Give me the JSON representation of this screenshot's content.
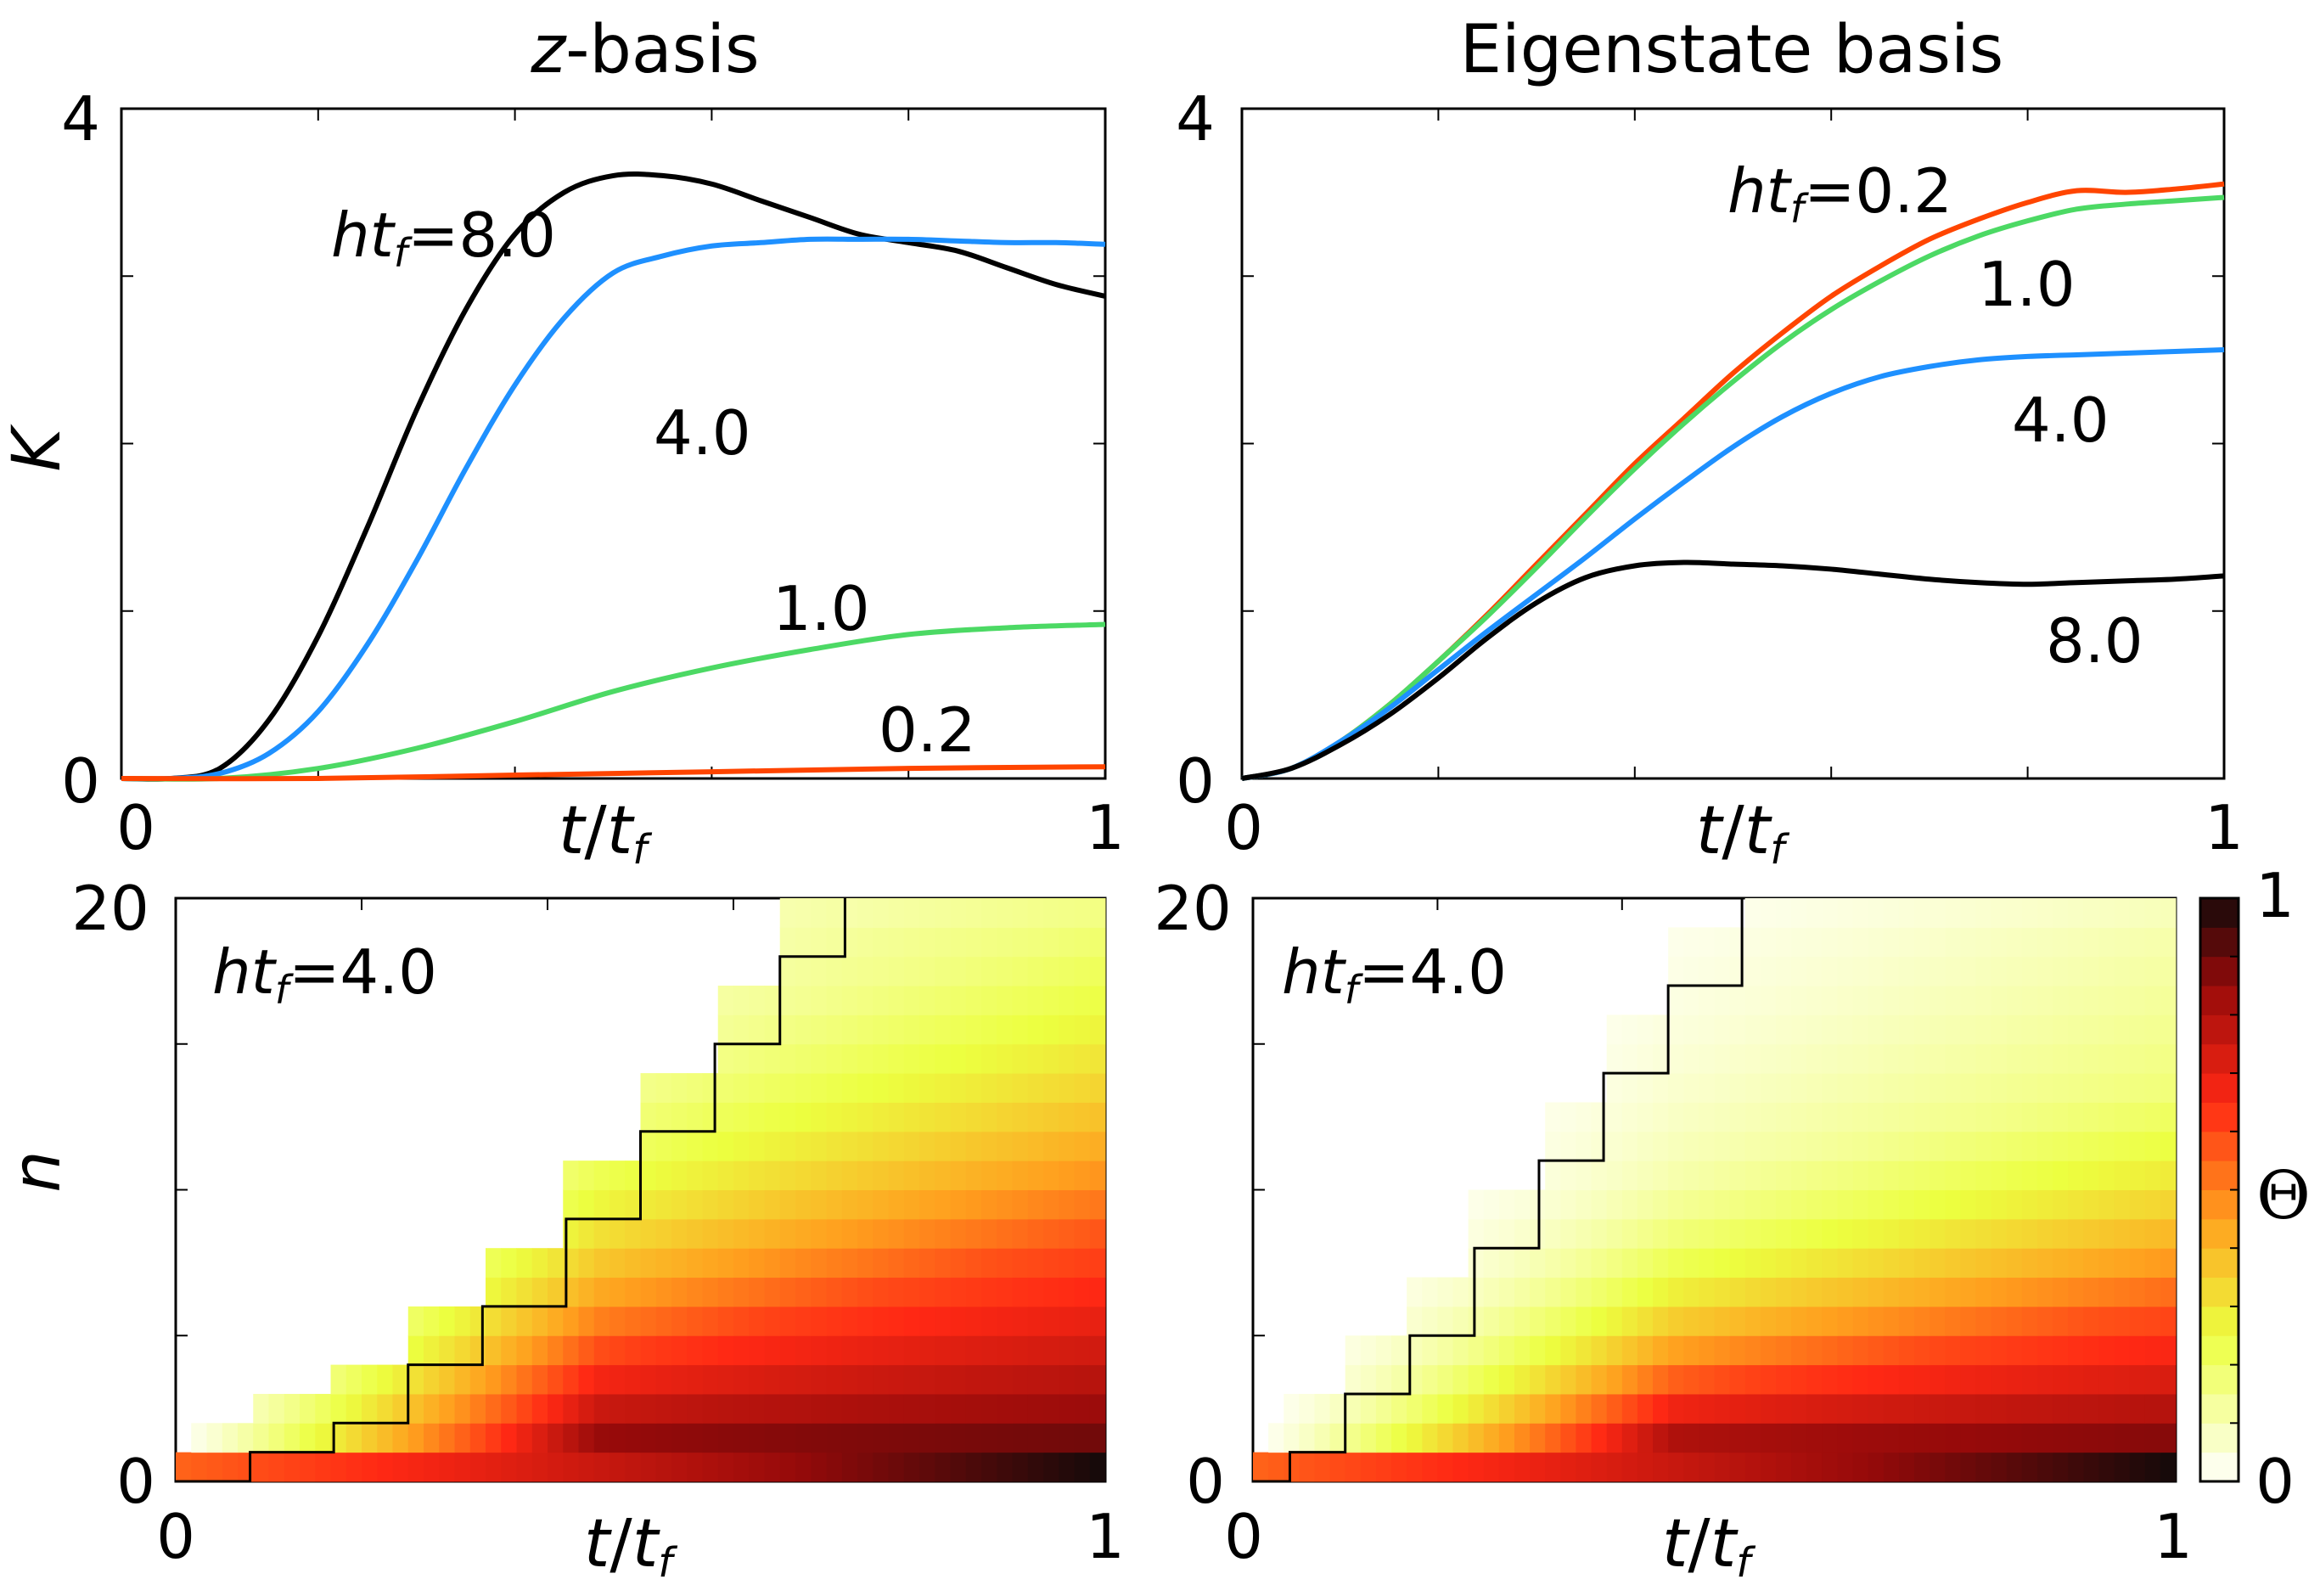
{
  "chart_data": [
    {
      "type": "line",
      "panel": "top-left",
      "title": "z-basis",
      "xlabel": "t/t_f",
      "ylabel": "K",
      "xlim": [
        0,
        1
      ],
      "ylim": [
        0,
        4
      ],
      "xticks": [
        "0",
        "1"
      ],
      "yticks": [
        "0",
        "4"
      ],
      "series": [
        {
          "name": "8.0",
          "color": "#000000",
          "x": [
            0,
            0.05,
            0.1,
            0.15,
            0.2,
            0.25,
            0.3,
            0.35,
            0.4,
            0.45,
            0.5,
            0.55,
            0.6,
            0.65,
            0.7,
            0.75,
            0.8,
            0.85,
            0.9,
            0.95,
            1.0
          ],
          "y": [
            0,
            0.0,
            0.06,
            0.35,
            0.85,
            1.5,
            2.2,
            2.8,
            3.25,
            3.5,
            3.6,
            3.6,
            3.55,
            3.45,
            3.35,
            3.25,
            3.2,
            3.15,
            3.05,
            2.95,
            2.88
          ]
        },
        {
          "name": "4.0",
          "color": "#1e90ff",
          "x": [
            0,
            0.05,
            0.1,
            0.15,
            0.2,
            0.25,
            0.3,
            0.35,
            0.4,
            0.45,
            0.5,
            0.55,
            0.6,
            0.65,
            0.7,
            0.75,
            0.8,
            0.85,
            0.9,
            0.95,
            1.0
          ],
          "y": [
            0,
            0.0,
            0.03,
            0.15,
            0.4,
            0.8,
            1.3,
            1.85,
            2.35,
            2.75,
            3.02,
            3.12,
            3.18,
            3.2,
            3.22,
            3.22,
            3.22,
            3.21,
            3.2,
            3.2,
            3.19
          ]
        },
        {
          "name": "1.0",
          "color": "#4cd964",
          "x": [
            0,
            0.1,
            0.2,
            0.3,
            0.4,
            0.5,
            0.6,
            0.7,
            0.8,
            0.9,
            1.0
          ],
          "y": [
            0,
            0.0,
            0.06,
            0.18,
            0.34,
            0.52,
            0.66,
            0.77,
            0.86,
            0.9,
            0.92
          ]
        },
        {
          "name": "0.2",
          "color": "#ff4500",
          "x": [
            0,
            0.2,
            0.4,
            0.6,
            0.8,
            1.0
          ],
          "y": [
            0,
            0.0,
            0.02,
            0.04,
            0.06,
            0.07
          ]
        }
      ],
      "annotations": [
        {
          "text": "ht_f=8.0",
          "series": "8.0"
        },
        {
          "text": "4.0",
          "series": "4.0"
        },
        {
          "text": "1.0",
          "series": "1.0"
        },
        {
          "text": "0.2",
          "series": "0.2"
        }
      ]
    },
    {
      "type": "line",
      "panel": "top-right",
      "title": "Eigenstate basis",
      "xlabel": "t/t_f",
      "ylabel": "",
      "xlim": [
        0,
        1
      ],
      "ylim": [
        0,
        4
      ],
      "xticks": [
        "0",
        "1"
      ],
      "yticks": [
        "0",
        "4"
      ],
      "series": [
        {
          "name": "0.2",
          "color": "#ff4500",
          "x": [
            0,
            0.05,
            0.1,
            0.15,
            0.2,
            0.25,
            0.3,
            0.35,
            0.4,
            0.45,
            0.5,
            0.55,
            0.6,
            0.65,
            0.7,
            0.75,
            0.8,
            0.85,
            0.9,
            0.95,
            1.0
          ],
          "y": [
            0,
            0.06,
            0.22,
            0.44,
            0.7,
            0.98,
            1.28,
            1.58,
            1.88,
            2.15,
            2.42,
            2.66,
            2.88,
            3.06,
            3.22,
            3.34,
            3.44,
            3.51,
            3.5,
            3.52,
            3.55
          ]
        },
        {
          "name": "1.0",
          "color": "#4cd964",
          "x": [
            0,
            0.05,
            0.1,
            0.15,
            0.2,
            0.25,
            0.3,
            0.35,
            0.4,
            0.45,
            0.5,
            0.55,
            0.6,
            0.65,
            0.7,
            0.75,
            0.8,
            0.85,
            0.9,
            0.95,
            1.0
          ],
          "y": [
            0,
            0.06,
            0.22,
            0.44,
            0.7,
            0.97,
            1.26,
            1.56,
            1.85,
            2.12,
            2.37,
            2.6,
            2.8,
            2.97,
            3.12,
            3.24,
            3.33,
            3.4,
            3.43,
            3.45,
            3.47
          ]
        },
        {
          "name": "4.0",
          "color": "#1e90ff",
          "x": [
            0,
            0.05,
            0.1,
            0.15,
            0.2,
            0.25,
            0.3,
            0.35,
            0.4,
            0.45,
            0.5,
            0.55,
            0.6,
            0.65,
            0.7,
            0.75,
            0.8,
            0.85,
            0.9,
            0.95,
            1.0
          ],
          "y": [
            0,
            0.06,
            0.22,
            0.42,
            0.65,
            0.88,
            1.1,
            1.32,
            1.55,
            1.77,
            1.98,
            2.16,
            2.3,
            2.4,
            2.46,
            2.5,
            2.52,
            2.53,
            2.54,
            2.55,
            2.56
          ]
        },
        {
          "name": "8.0",
          "color": "#000000",
          "x": [
            0,
            0.05,
            0.1,
            0.15,
            0.2,
            0.25,
            0.3,
            0.35,
            0.4,
            0.45,
            0.5,
            0.55,
            0.6,
            0.65,
            0.7,
            0.75,
            0.8,
            0.85,
            0.9,
            0.95,
            1.0
          ],
          "y": [
            0,
            0.06,
            0.2,
            0.38,
            0.6,
            0.84,
            1.05,
            1.2,
            1.27,
            1.29,
            1.28,
            1.27,
            1.25,
            1.22,
            1.19,
            1.17,
            1.16,
            1.17,
            1.18,
            1.19,
            1.21
          ]
        }
      ],
      "annotations": [
        {
          "text": "ht_f=0.2",
          "series": "0.2"
        },
        {
          "text": "1.0",
          "series": "1.0"
        },
        {
          "text": "4.0",
          "series": "4.0"
        },
        {
          "text": "8.0",
          "series": "8.0"
        }
      ]
    },
    {
      "type": "heatmap",
      "panel": "bottom-left",
      "xlabel": "t/t_f",
      "ylabel": "n",
      "xlim": [
        0,
        1
      ],
      "ylim": [
        0,
        20
      ],
      "xticks": [
        "0",
        "1"
      ],
      "yticks": [
        "0",
        "20"
      ],
      "annotation": "ht_f=4.0",
      "n_rows": 21,
      "value_description": "Theta increases toward low n and late times; staircase boundary marks front",
      "staircase_front": {
        "t": [
          0.0,
          0.08,
          0.17,
          0.25,
          0.33,
          0.42,
          0.5,
          0.58,
          0.65,
          0.72
        ],
        "n": [
          0,
          1,
          2,
          4,
          6,
          9,
          12,
          15,
          18,
          20
        ]
      }
    },
    {
      "type": "heatmap",
      "panel": "bottom-right",
      "xlabel": "t/t_f",
      "ylabel": "",
      "xlim": [
        0,
        1
      ],
      "ylim": [
        0,
        20
      ],
      "xticks": [
        "0",
        "1"
      ],
      "yticks": [
        "0",
        "20"
      ],
      "annotation": "ht_f=4.0",
      "n_rows": 21,
      "value_description": "Theta concentrated at low n, spreading more slowly than z-basis",
      "staircase_front": {
        "t": [
          0.0,
          0.04,
          0.1,
          0.17,
          0.24,
          0.31,
          0.38,
          0.45,
          0.53
        ],
        "n": [
          0,
          1,
          3,
          5,
          8,
          11,
          14,
          17,
          20
        ]
      },
      "colorbar": {
        "label": "Θ",
        "ticks": [
          "0",
          "1"
        ],
        "range": [
          0,
          1
        ]
      }
    }
  ],
  "labels": {
    "title_tl_italic": "z",
    "title_tl_rest": "-basis",
    "title_tr": "Eigenstate basis",
    "ylabel_tl": "K",
    "ylabel_bl": "n",
    "xlabel_t": "t",
    "xlabel_slash": "/",
    "xlabel_tf": "t",
    "xlabel_sub": "f",
    "tick_0": "0",
    "tick_1": "1",
    "tick_4": "4",
    "tick_20": "20",
    "ann_h": "h",
    "ann_t": "t",
    "ann_sub": "f",
    "ann_tl_main": "=8.0",
    "ann_tl_4": "4.0",
    "ann_tl_1": "1.0",
    "ann_tl_02": "0.2",
    "ann_tr_main": "=0.2",
    "ann_tr_1": "1.0",
    "ann_tr_4": "4.0",
    "ann_tr_8": "8.0",
    "ann_b": "=4.0",
    "colorbar_label": "Θ",
    "cb_0": "0",
    "cb_1": "1"
  }
}
